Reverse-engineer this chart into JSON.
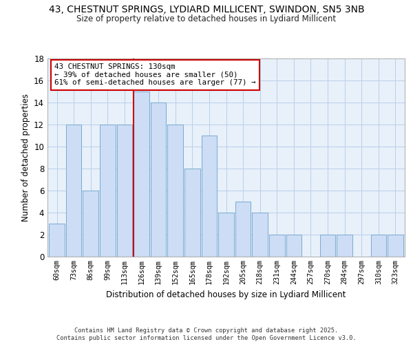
{
  "title": "43, CHESTNUT SPRINGS, LYDIARD MILLICENT, SWINDON, SN5 3NB",
  "subtitle": "Size of property relative to detached houses in Lydiard Millicent",
  "xlabel": "Distribution of detached houses by size in Lydiard Millicent",
  "ylabel": "Number of detached properties",
  "bin_labels": [
    "60sqm",
    "73sqm",
    "86sqm",
    "99sqm",
    "113sqm",
    "126sqm",
    "139sqm",
    "152sqm",
    "165sqm",
    "178sqm",
    "192sqm",
    "205sqm",
    "218sqm",
    "231sqm",
    "244sqm",
    "257sqm",
    "270sqm",
    "284sqm",
    "297sqm",
    "310sqm",
    "323sqm"
  ],
  "bar_heights": [
    3,
    12,
    6,
    12,
    12,
    15,
    14,
    12,
    8,
    11,
    4,
    5,
    4,
    2,
    2,
    0,
    2,
    2,
    0,
    2,
    2
  ],
  "bar_color": "#ccddf5",
  "bar_edge_color": "#7aaad0",
  "grid_color": "#b8cfe8",
  "bg_color": "#e8f0fa",
  "red_line_index": 5,
  "red_line_color": "#cc0000",
  "annotation_line1": "43 CHESTNUT SPRINGS: 130sqm",
  "annotation_line2": "← 39% of detached houses are smaller (50)",
  "annotation_line3": "61% of semi-detached houses are larger (77) →",
  "annotation_box_color": "#ffffff",
  "annotation_box_edge": "#cc0000",
  "ylim": [
    0,
    18
  ],
  "yticks": [
    0,
    2,
    4,
    6,
    8,
    10,
    12,
    14,
    16,
    18
  ],
  "footer_line1": "Contains HM Land Registry data © Crown copyright and database right 2025.",
  "footer_line2": "Contains public sector information licensed under the Open Government Licence v3.0."
}
